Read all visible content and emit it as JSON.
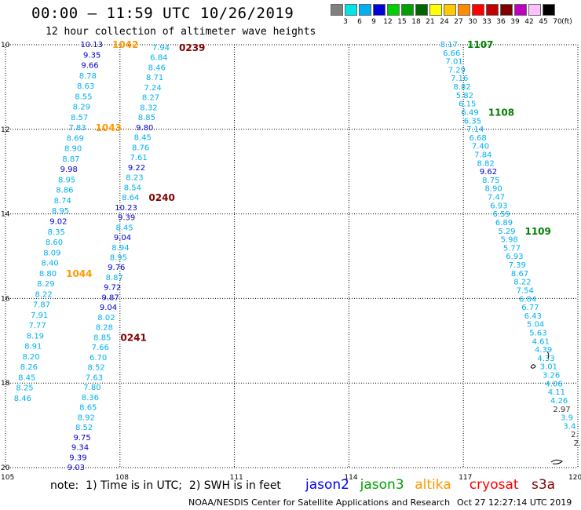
{
  "header": {
    "title": "00:00 – 11:59 UTC 10/26/2019",
    "subtitle": "12 hour collection of altimeter wave heights"
  },
  "legend": {
    "unit_label": "(ft)",
    "items": [
      {
        "label": "3",
        "color": "#808080"
      },
      {
        "label": "6",
        "color": "#00e5e5"
      },
      {
        "label": "9",
        "color": "#00b0f0"
      },
      {
        "label": "12",
        "color": "#0000d8"
      },
      {
        "label": "15",
        "color": "#00d000"
      },
      {
        "label": "18",
        "color": "#00a000"
      },
      {
        "label": "21",
        "color": "#006400"
      },
      {
        "label": "24",
        "color": "#ffff00"
      },
      {
        "label": "27",
        "color": "#ffc800"
      },
      {
        "label": "30",
        "color": "#ff8c00"
      },
      {
        "label": "33",
        "color": "#ff0000"
      },
      {
        "label": "36",
        "color": "#c00000"
      },
      {
        "label": "39",
        "color": "#800000"
      },
      {
        "label": "42",
        "color": "#c000c0"
      },
      {
        "label": "45",
        "color": "#ffc0ff"
      },
      {
        "label": "70",
        "color": "#000000"
      }
    ]
  },
  "axes": {
    "lat_labels": [
      "10",
      "12",
      "14",
      "16",
      "18",
      "20"
    ],
    "lon_labels": [
      "105",
      "108",
      "111",
      "114",
      "117",
      "120"
    ]
  },
  "track_a": {
    "values": [
      "10.13",
      "9.35",
      "9.66",
      "8.78",
      "8.63",
      "8.55",
      "8.29",
      "8.57",
      "7.83",
      "8.69",
      "8.90",
      "8.87",
      "9.98",
      "8.95",
      "8.86",
      "8.74",
      "8.95",
      "9.02",
      "8.35",
      "8.60",
      "8.09",
      "8.40",
      "8.80",
      "8.29",
      "8.22",
      "7.87",
      "7.91",
      "7.77",
      "8.19",
      "8.91",
      "8.20",
      "8.26",
      "8.45",
      "8.25",
      "8.46"
    ],
    "times": [
      {
        "label": "1042",
        "index": 0
      },
      {
        "label": "1043",
        "index": 8
      },
      {
        "label": "1044",
        "index": 22
      }
    ]
  },
  "track_b": {
    "values": [
      "7.94",
      "6.84",
      "8.46",
      "8.71",
      "7.24",
      "8.27",
      "8.32",
      "8.85",
      "9.80",
      "8.45",
      "8.76",
      "7.61",
      "9.22",
      "8.23",
      "8.54",
      "8.64",
      "10.23",
      "9.39",
      "8.45",
      "9.04",
      "8.94",
      "8.95",
      "9.76",
      "8.87",
      "9.72",
      "9.87",
      "9.04",
      "8.02",
      "8.28",
      "8.85",
      "7.66",
      "6.70",
      "8.52",
      "7.63",
      "7.80",
      "8.36",
      "8.65",
      "8.92",
      "8.52",
      "9.75",
      "9.34",
      "9.39",
      "9.03"
    ],
    "times": [
      {
        "label": "0239",
        "index": 0
      },
      {
        "label": "0240",
        "index": 15
      },
      {
        "label": "0241",
        "index": 29
      }
    ]
  },
  "track_c": {
    "values": [
      "8.17",
      "6.66",
      "7.01",
      "7.29",
      "7.16",
      "8.82",
      "5.82",
      "6.15",
      "6.49",
      "6.35",
      "7.14",
      "6.68",
      "7.40",
      "7.84",
      "8.82",
      "9.62",
      "8.75",
      "8.90",
      "7.47",
      "6.93",
      "6.59",
      "6.89",
      "5.29",
      "5.98",
      "5.77",
      "6.93",
      "7.39",
      "8.67",
      "8.22",
      "7.54",
      "6.84",
      "6.77",
      "6.43",
      "5.04",
      "5.63",
      "4.61",
      "4.39",
      "4.33",
      "3.01",
      "3.26",
      "4.06",
      "4.11",
      "4.26",
      "2.97",
      "3.9",
      "3.4",
      "2.",
      "2."
    ],
    "times": [
      {
        "label": "1107",
        "index": 0
      },
      {
        "label": "1108",
        "index": 8
      },
      {
        "label": "1109",
        "index": 22
      }
    ]
  },
  "notes": {
    "note_text": "note:  1) Time is in UTC;  2) SWH is in feet",
    "satellites": [
      {
        "name": "jason2",
        "color": "#0000ff"
      },
      {
        "name": "jason3",
        "color": "#00a000"
      },
      {
        "name": "altika",
        "color": "#ff9900"
      },
      {
        "name": "cryosat",
        "color": "#ff0000"
      },
      {
        "name": "s3a",
        "color": "#800000"
      }
    ],
    "footer": "NOAA/NESDIS Center for Satellite Applications and Research",
    "timestamp": "Oct 27 12:27:14 UTC 2019"
  }
}
